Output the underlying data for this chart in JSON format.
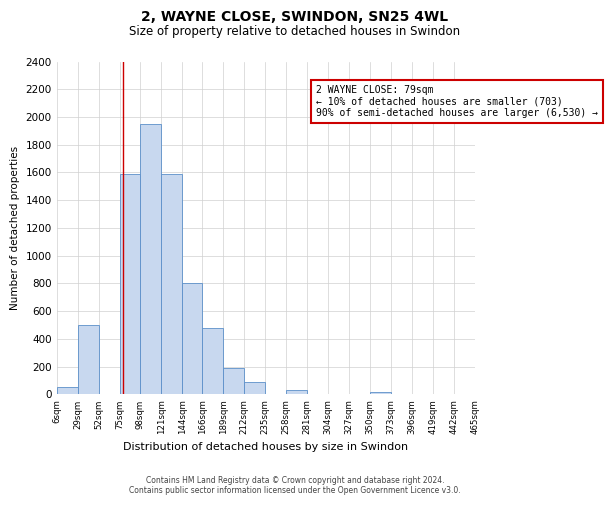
{
  "title": "2, WAYNE CLOSE, SWINDON, SN25 4WL",
  "subtitle": "Size of property relative to detached houses in Swindon",
  "xlabel": "Distribution of detached houses by size in Swindon",
  "ylabel": "Number of detached properties",
  "bin_edges": [
    6,
    29,
    52,
    75,
    98,
    121,
    144,
    166,
    189,
    212,
    235,
    258,
    281,
    304,
    327,
    350,
    373,
    396,
    419,
    442,
    465
  ],
  "bin_heights": [
    50,
    500,
    0,
    1590,
    1950,
    1590,
    800,
    480,
    190,
    90,
    0,
    35,
    0,
    0,
    0,
    15,
    0,
    0,
    0,
    0
  ],
  "bar_facecolor": "#c8d8ef",
  "bar_edgecolor": "#5b8fc9",
  "vline_x": 79,
  "vline_color": "#cc0000",
  "annotation_text": "2 WAYNE CLOSE: 79sqm\n← 10% of detached houses are smaller (703)\n90% of semi-detached houses are larger (6,530) →",
  "annotation_bbox_edgecolor": "#cc0000",
  "annotation_bbox_facecolor": "white",
  "ylim": [
    0,
    2400
  ],
  "yticks": [
    0,
    200,
    400,
    600,
    800,
    1000,
    1200,
    1400,
    1600,
    1800,
    2000,
    2200,
    2400
  ],
  "xtick_labels": [
    "6sqm",
    "29sqm",
    "52sqm",
    "75sqm",
    "98sqm",
    "121sqm",
    "144sqm",
    "166sqm",
    "189sqm",
    "212sqm",
    "235sqm",
    "258sqm",
    "281sqm",
    "304sqm",
    "327sqm",
    "350sqm",
    "373sqm",
    "396sqm",
    "419sqm",
    "442sqm",
    "465sqm"
  ],
  "footer_line1": "Contains HM Land Registry data © Crown copyright and database right 2024.",
  "footer_line2": "Contains public sector information licensed under the Open Government Licence v3.0.",
  "background_color": "#ffffff",
  "grid_color": "#d0d0d0"
}
